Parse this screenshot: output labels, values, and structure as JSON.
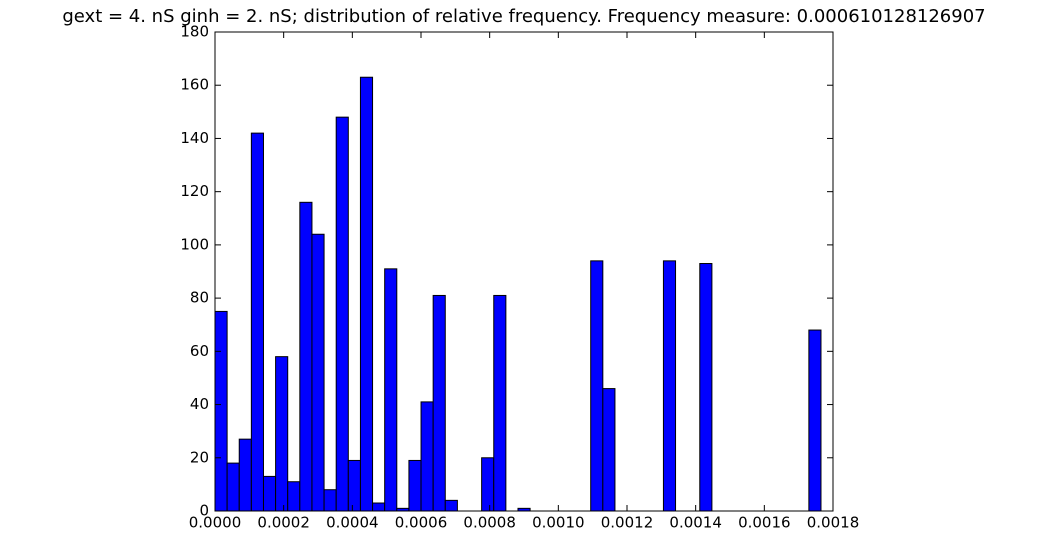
{
  "chart_data": {
    "type": "histogram",
    "title": "gext = 4. nS ginh = 2. nS; distribution of relative frequency. Frequency measure: 0.000610128126907",
    "bins": [
      0,
      3.53e-05,
      7.06e-05,
      0.0001059,
      0.0001412,
      0.0001765,
      0.0002118,
      0.0002471,
      0.0002824,
      0.0003177,
      0.000353,
      0.0003883,
      0.0004236,
      0.0004589,
      0.0004942,
      0.0005295,
      0.0005648,
      0.0006001,
      0.0006354,
      0.0006707,
      0.000706,
      0.0007413,
      0.0007766,
      0.0008119,
      0.0008472,
      0.0008825,
      0.0009178,
      0.0009531,
      0.0009884,
      0.0010237,
      0.001059,
      0.0010943,
      0.0011296,
      0.0011649,
      0.0012002,
      0.0012355,
      0.0012708,
      0.0013061,
      0.0013414,
      0.0013767,
      0.001412,
      0.0014473,
      0.0014826,
      0.0015179,
      0.0015532,
      0.0015885,
      0.0016238,
      0.0016591,
      0.0016944,
      0.0017297,
      0.001765
    ],
    "values": [
      75,
      18,
      27,
      142,
      13,
      58,
      11,
      116,
      104,
      8,
      148,
      19,
      163,
      3,
      91,
      1,
      19,
      41,
      81,
      4,
      0,
      0,
      20,
      81,
      0,
      1,
      0,
      0,
      0,
      0,
      0,
      94,
      46,
      0,
      0,
      0,
      0,
      94,
      0,
      0,
      93,
      0,
      0,
      0,
      0,
      0,
      0,
      0,
      0,
      68
    ],
    "color": "#0000ff",
    "xlim": [
      0,
      0.0018
    ],
    "xticks": [
      {
        "value": 0,
        "label": "0.0000"
      },
      {
        "value": 0.0002,
        "label": "0.0002"
      },
      {
        "value": 0.0004,
        "label": "0.0004"
      },
      {
        "value": 0.0006,
        "label": "0.0006"
      },
      {
        "value": 0.0008,
        "label": "0.0008"
      },
      {
        "value": 0.001,
        "label": "0.0010"
      },
      {
        "value": 0.0012,
        "label": "0.0012"
      },
      {
        "value": 0.0014,
        "label": "0.0014"
      },
      {
        "value": 0.0016,
        "label": "0.0016"
      },
      {
        "value": 0.0018,
        "label": "0.0018"
      }
    ],
    "ylim": [
      0,
      180
    ],
    "yticks": [
      0,
      20,
      40,
      60,
      80,
      100,
      120,
      140,
      160,
      180
    ]
  }
}
